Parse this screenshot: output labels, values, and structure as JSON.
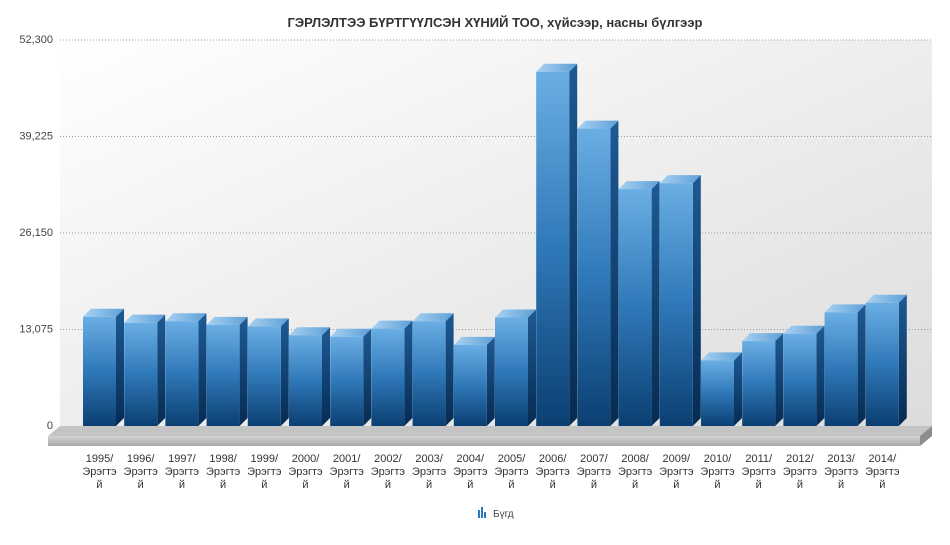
{
  "chart_data": {
    "type": "bar",
    "title": "ГЭРЛЭЛТЭЭ БҮРТГҮҮЛСЭН ХҮНИЙ ТОО, хүйсээр, насны бүлгээр",
    "xlabel": "",
    "ylabel": "",
    "ylim": [
      0,
      52300
    ],
    "yticks": [
      "0",
      "13,075",
      "26,150",
      "39,225",
      "52,300"
    ],
    "grid": true,
    "legend_position": "bottom",
    "categories": [
      [
        "1995/",
        "Эрэгтэ",
        "й"
      ],
      [
        "1996/",
        "Эрэгтэ",
        "й"
      ],
      [
        "1997/",
        "Эрэгтэ",
        "й"
      ],
      [
        "1998/",
        "Эрэгтэ",
        "й"
      ],
      [
        "1999/",
        "Эрэгтэ",
        "й"
      ],
      [
        "2000/",
        "Эрэгтэ",
        "й"
      ],
      [
        "2001/",
        "Эрэгтэ",
        "й"
      ],
      [
        "2002/",
        "Эрэгтэ",
        "й"
      ],
      [
        "2003/",
        "Эрэгтэ",
        "й"
      ],
      [
        "2004/",
        "Эрэгтэ",
        "й"
      ],
      [
        "2005/",
        "Эрэгтэ",
        "й"
      ],
      [
        "2006/",
        "Эрэгтэ",
        "й"
      ],
      [
        "2007/",
        "Эрэгтэ",
        "й"
      ],
      [
        "2008/",
        "Эрэгтэ",
        "й"
      ],
      [
        "2009/",
        "Эрэгтэ",
        "й"
      ],
      [
        "2010/",
        "Эрэгтэ",
        "й"
      ],
      [
        "2011/",
        "Эрэгтэ",
        "й"
      ],
      [
        "2012/",
        "Эрэгтэ",
        "й"
      ],
      [
        "2013/",
        "Эрэгтэ",
        "й"
      ],
      [
        "2014/",
        "Эрэгтэ",
        "й"
      ]
    ],
    "series": [
      {
        "name": "Бүгд",
        "color": "#2f78b8",
        "values": [
          14800,
          14000,
          14200,
          13700,
          13500,
          12300,
          12100,
          13200,
          14200,
          11000,
          14700,
          48000,
          40300,
          32100,
          32900,
          8900,
          11500,
          12500,
          15400,
          16700
        ]
      }
    ]
  }
}
